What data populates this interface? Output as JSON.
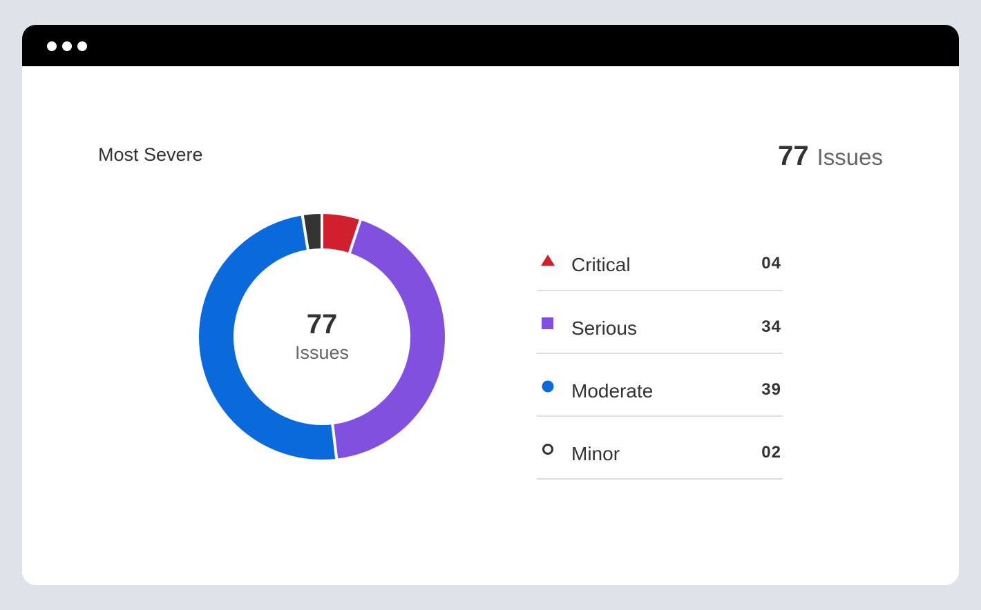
{
  "window": {
    "titlebar_dots": 3
  },
  "card": {
    "title": "Most Severe",
    "total": {
      "value": "77",
      "label": "Issues"
    },
    "donut_center": {
      "value": "77",
      "label": "Issues"
    }
  },
  "legend": [
    {
      "label": "Critical",
      "value": "04",
      "shape": "triangle",
      "color": "#d0202e"
    },
    {
      "label": "Serious",
      "value": "34",
      "shape": "square",
      "color": "#8150de"
    },
    {
      "label": "Moderate",
      "value": "39",
      "shape": "circle",
      "color": "#0a6adb"
    },
    {
      "label": "Minor",
      "value": "02",
      "shape": "ring",
      "color": "#333333"
    }
  ],
  "chart_data": {
    "type": "pie",
    "subtype": "donut",
    "title": "Most Severe",
    "center_text": "77 Issues",
    "total": 77,
    "categories": [
      "Critical",
      "Serious",
      "Moderate",
      "Minor"
    ],
    "values": [
      4,
      34,
      39,
      2
    ],
    "colors": [
      "#d0202e",
      "#8150de",
      "#0a6adb",
      "#333333"
    ],
    "start_angle": "top, clockwise",
    "legend_position": "right"
  }
}
